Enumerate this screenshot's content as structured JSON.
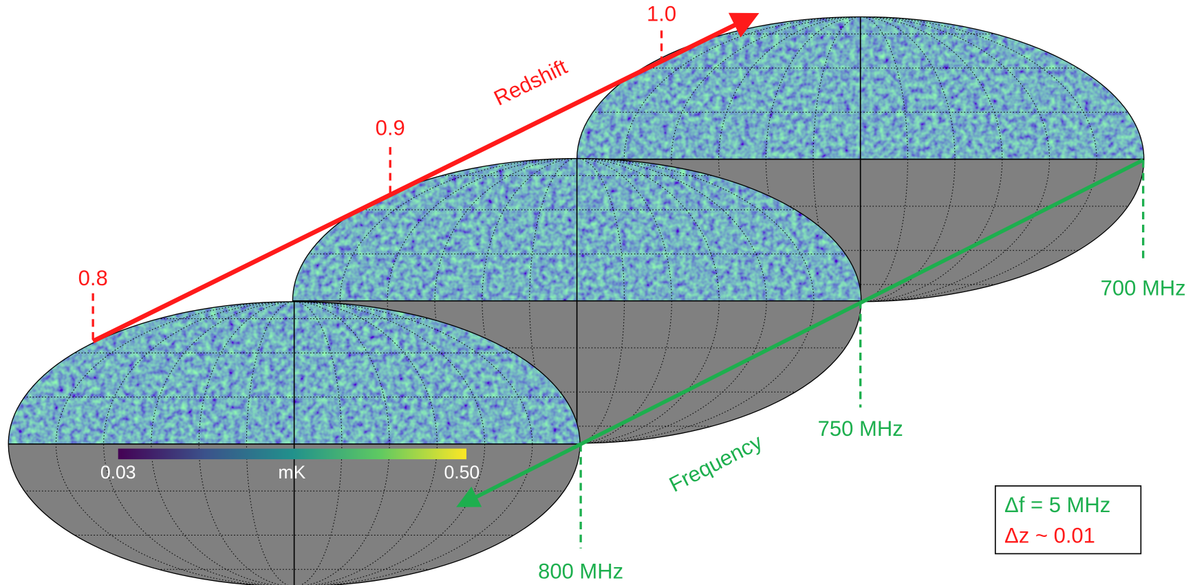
{
  "redshift_axis": {
    "label": "Redshift",
    "ticks": [
      "0.8",
      "0.9",
      "1.0"
    ]
  },
  "frequency_axis": {
    "label": "Frequency",
    "ticks": [
      "800 MHz",
      "750 MHz",
      "700 MHz"
    ]
  },
  "colorbar": {
    "min_label": "0.03",
    "unit": "mK",
    "max_label": "0.50"
  },
  "legend_box": {
    "lines": [
      "Δf = 5 MHz",
      "Δz ~ 0.01"
    ]
  }
}
